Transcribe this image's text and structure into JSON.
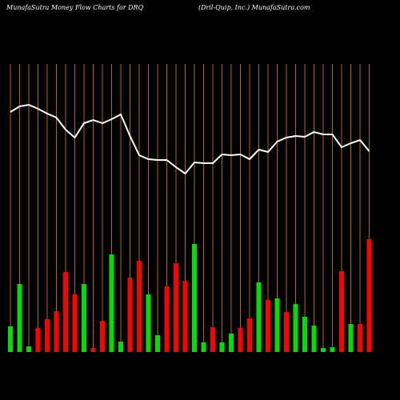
{
  "chart_data": {
    "type": "moneyflow",
    "title": "MunafaSutra  Money Flow  Charts for DRQ",
    "subtitle": "(Dril-Quip,  Inc.)  MunafaSutra.com",
    "categories": [
      null,
      null,
      null,
      null,
      null,
      null,
      null,
      null,
      null,
      null,
      null,
      null,
      null,
      null,
      null,
      null,
      null,
      null,
      null,
      null,
      null,
      null,
      null,
      null,
      null,
      null,
      null,
      null,
      null,
      null,
      null,
      null,
      null,
      null,
      null,
      null,
      null,
      null,
      null,
      null
    ],
    "ylim": [
      0,
      440
    ],
    "guide_color": "#b5650f",
    "line_color": "#ffffff",
    "bars": {
      "values": [
        32,
        85,
        7,
        30,
        41,
        51,
        100,
        72,
        85,
        5,
        39,
        122,
        13,
        93,
        114,
        72,
        21,
        82,
        111,
        89,
        135,
        12,
        31,
        12,
        23,
        30,
        42,
        87,
        65,
        67,
        50,
        60,
        44,
        33,
        5,
        6,
        101,
        35,
        35,
        141
      ],
      "colors": [
        "#00dd00",
        "#00dd00",
        "#00dd00",
        "#ff0000",
        "#ff0000",
        "#ff0000",
        "#ff0000",
        "#ff0000",
        "#00dd00",
        "#ff0000",
        "#ff0000",
        "#00dd00",
        "#00dd00",
        "#ff0000",
        "#ff0000",
        "#00dd00",
        "#00dd00",
        "#ff0000",
        "#ff0000",
        "#ff0000",
        "#00dd00",
        "#00dd00",
        "#ff0000",
        "#00dd00",
        "#00dd00",
        "#ff0000",
        "#ff0000",
        "#00dd00",
        "#ff0000",
        "#00dd00",
        "#ff0000",
        "#00dd00",
        "#00dd00",
        "#00dd00",
        "#00dd00",
        "#00dd00",
        "#ff0000",
        "#00dd00",
        "#ff0000",
        "#ff0000"
      ]
    },
    "line": {
      "values": [
        300,
        307,
        309,
        304,
        298,
        293,
        278,
        268,
        286,
        290,
        286,
        291,
        297,
        270,
        246,
        241,
        240,
        240,
        231,
        223,
        237,
        236,
        236,
        247,
        246,
        247,
        241,
        253,
        250,
        263,
        268,
        270,
        269,
        275,
        272,
        272,
        256,
        261,
        265,
        251
      ]
    }
  }
}
